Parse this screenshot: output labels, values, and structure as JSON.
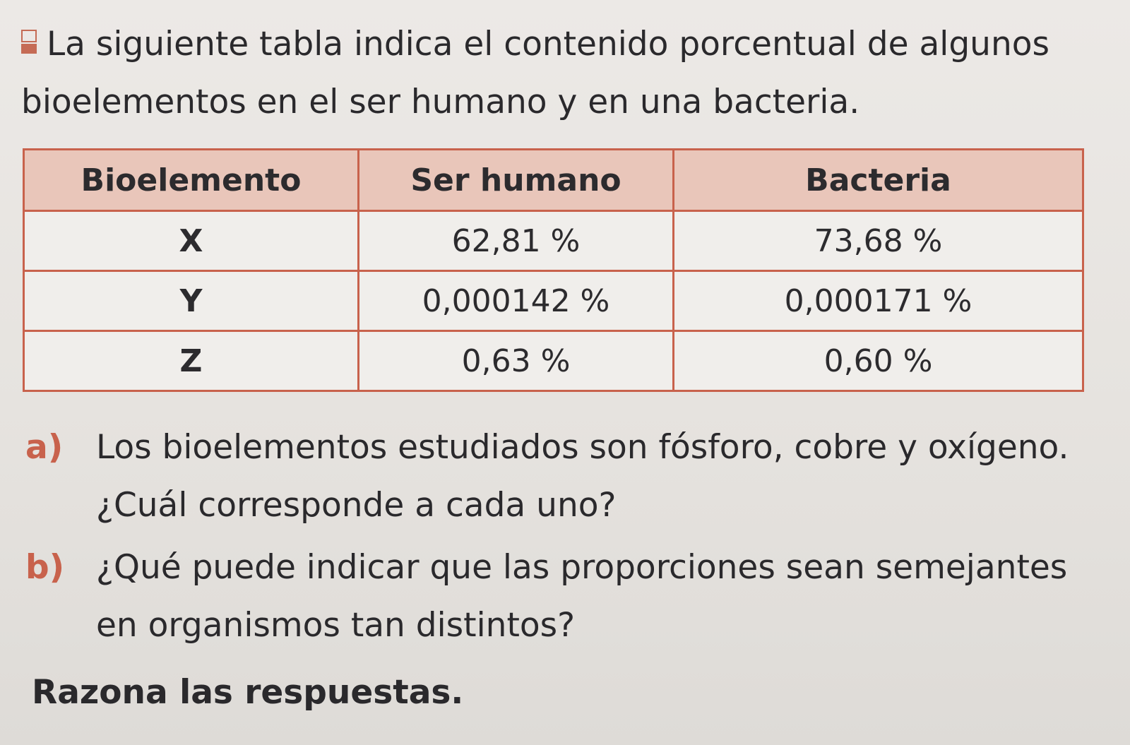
{
  "intro": {
    "icon": "difficulty-level-icon",
    "text": "La siguiente tabla indica el contenido porcentual de algunos bioelementos en el ser humano y en una bacteria."
  },
  "table": {
    "headers": [
      "Bioelemento",
      "Ser humano",
      "Bacteria"
    ],
    "rows": [
      [
        "X",
        "62,81 %",
        "73,68 %"
      ],
      [
        "Y",
        "0,000142 %",
        "0,000171 %"
      ],
      [
        "Z",
        "0,63 %",
        "0,60 %"
      ]
    ]
  },
  "questions": [
    {
      "marker": "a)",
      "text": "Los bioelementos estudiados son fósforo, cobre y oxígeno. ¿Cuál corresponde a cada uno?"
    },
    {
      "marker": "b)",
      "text": "¿Qué puede indicar que las proporciones sean semejantes en organismos tan distintos?"
    }
  ],
  "closing": "Razona las respuestas.",
  "colors": {
    "accent": "#c8624c",
    "header_fill": "#e9c6ba",
    "text": "#2a292c"
  }
}
